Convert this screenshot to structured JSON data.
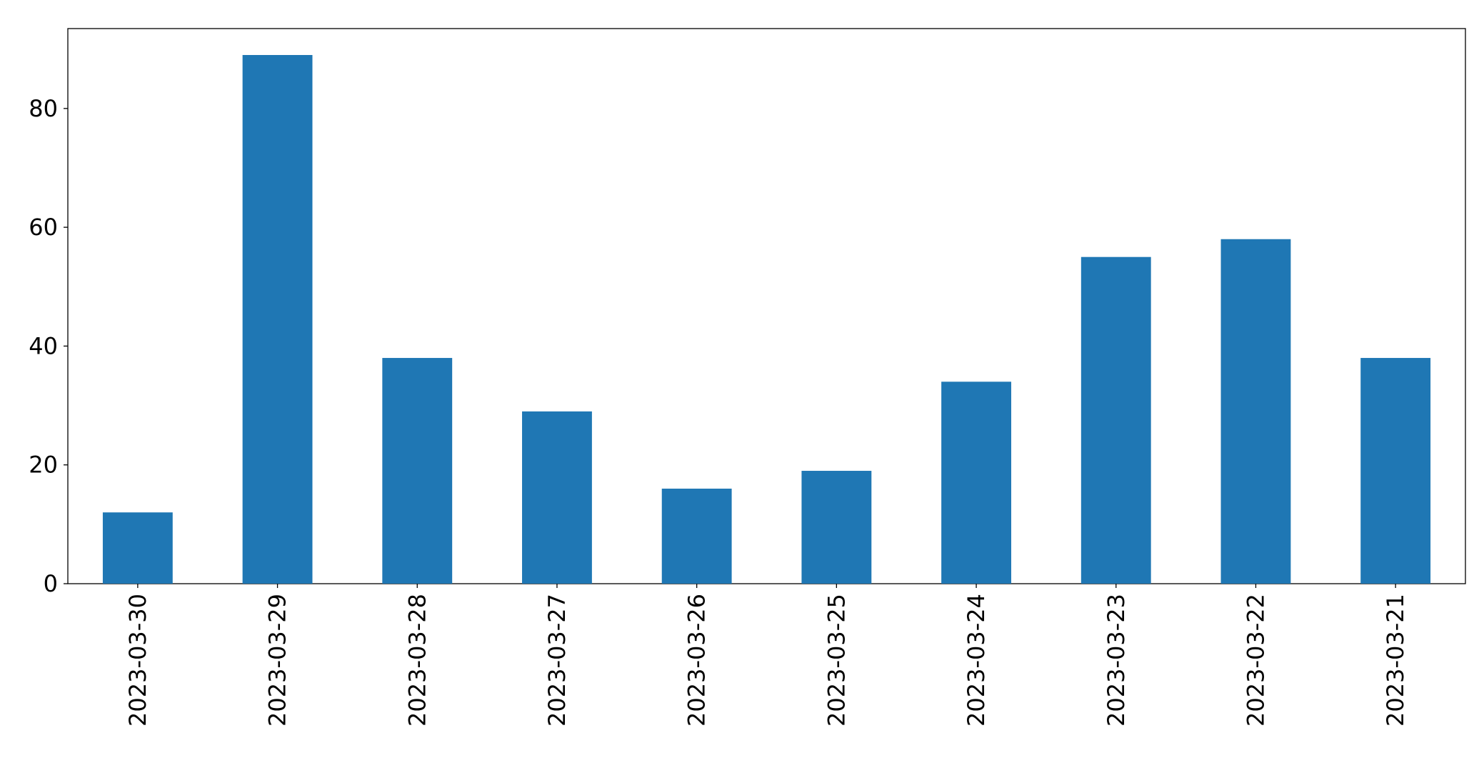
{
  "chart_data": {
    "type": "bar",
    "categories": [
      "2023-03-30",
      "2023-03-29",
      "2023-03-28",
      "2023-03-27",
      "2023-03-26",
      "2023-03-25",
      "2023-03-24",
      "2023-03-23",
      "2023-03-22",
      "2023-03-21"
    ],
    "values": [
      12,
      89,
      38,
      29,
      16,
      19,
      34,
      55,
      58,
      38
    ],
    "color": "#1f77b4",
    "ylim": [
      0,
      93.45
    ],
    "yticks": [
      0,
      20,
      40,
      60,
      80
    ],
    "grid": false
  }
}
